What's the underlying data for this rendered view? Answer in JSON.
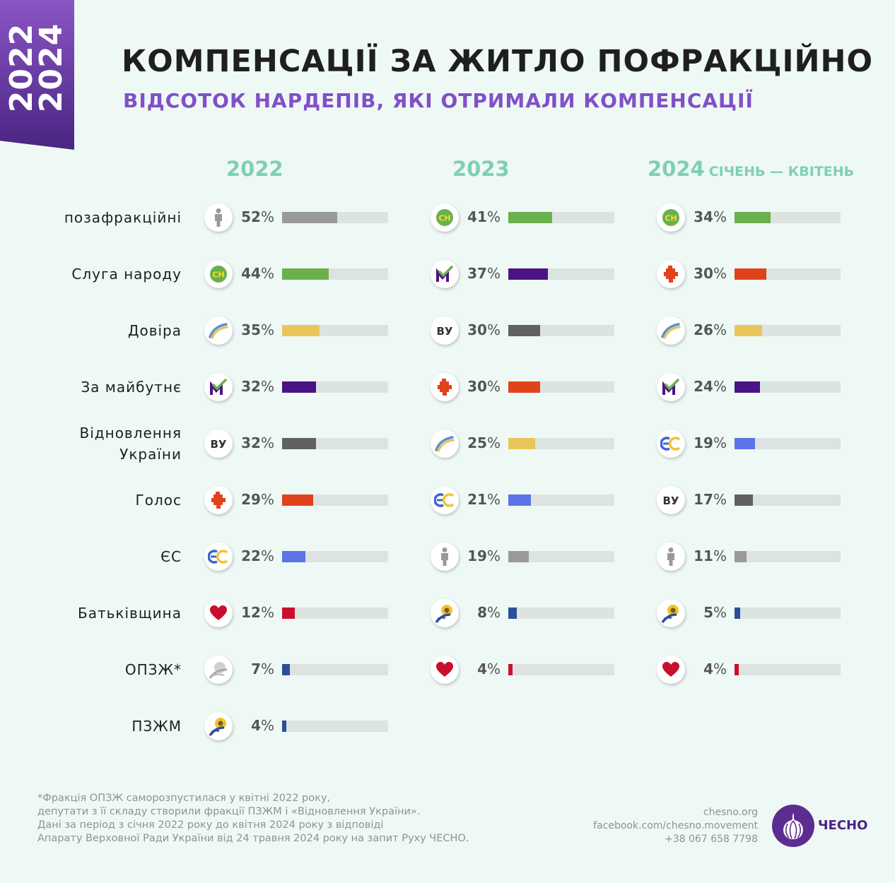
{
  "ribbon": {
    "line1": "2022",
    "line2": "2024"
  },
  "header": {
    "title": "КОМПЕНСАЦІЇ ЗА ЖИТЛО ПОФРАКЦІЙНО",
    "subtitle": "ВІДСОТОК НАРДЕПІВ, ЯКІ ОТРИМАЛИ КОМПЕНСАЦІЇ"
  },
  "colors": {
    "background": "#eef8f5",
    "accent_purple": "#8150c8",
    "column_header": "#7fd0b2",
    "track": "#dde3e1"
  },
  "factions": {
    "poza": {
      "label": "позафракційні",
      "icon": "person-icon",
      "color": "#9a9a9a"
    },
    "sn": {
      "label": "Слуга народу",
      "icon": "sluha-narodu-icon",
      "color": "#6ab04c"
    },
    "doveria": {
      "label": "Довіра",
      "icon": "dovira-icon",
      "color": "#e8c65a"
    },
    "zm": {
      "label": "За майбутнє",
      "icon": "za-maibutne-icon",
      "color": "#4b1486"
    },
    "vu": {
      "label": "Відновлення України",
      "icon": "vu-icon",
      "color": "#5f6261"
    },
    "holos": {
      "label": "Голос",
      "icon": "holos-icon",
      "color": "#e0421c"
    },
    "es": {
      "label": "ЄС",
      "icon": "es-icon",
      "color": "#5b74e8"
    },
    "batk": {
      "label": "Батьківщина",
      "icon": "heart-icon",
      "color": "#c8102e"
    },
    "opzzh": {
      "label": "ОПЗЖ*",
      "icon": "opzzh-icon",
      "color": "#2a4d9c"
    },
    "pzzhm": {
      "label": "ПЗЖМ",
      "icon": "sunflower-icon",
      "color": "#2a4d9c"
    }
  },
  "chart_data": {
    "type": "bar",
    "unit": "%",
    "xlim": [
      0,
      100
    ],
    "row_labels": [
      "позафракційні",
      "Слуга народу",
      "Довіра",
      "За майбутнє",
      "Відновлення України",
      "Голос",
      "ЄС",
      "Батьківщина",
      "ОПЗЖ*",
      "ПЗЖМ"
    ],
    "columns": [
      {
        "year": "2022",
        "period": "",
        "rows": [
          {
            "faction": "poza",
            "value": 52
          },
          {
            "faction": "sn",
            "value": 44
          },
          {
            "faction": "doveria",
            "value": 35
          },
          {
            "faction": "zm",
            "value": 32
          },
          {
            "faction": "vu",
            "value": 32
          },
          {
            "faction": "holos",
            "value": 29
          },
          {
            "faction": "es",
            "value": 22
          },
          {
            "faction": "batk",
            "value": 12
          },
          {
            "faction": "opzzh",
            "value": 7
          },
          {
            "faction": "pzzhm",
            "value": 4
          }
        ]
      },
      {
        "year": "2023",
        "period": "",
        "rows": [
          {
            "faction": "sn",
            "value": 41
          },
          {
            "faction": "zm",
            "value": 37
          },
          {
            "faction": "vu",
            "value": 30
          },
          {
            "faction": "holos",
            "value": 30
          },
          {
            "faction": "doveria",
            "value": 25
          },
          {
            "faction": "es",
            "value": 21
          },
          {
            "faction": "poza",
            "value": 19
          },
          {
            "faction": "pzzhm",
            "value": 8
          },
          {
            "faction": "batk",
            "value": 4
          }
        ]
      },
      {
        "year": "2024",
        "period": "СІЧЕНЬ — КВІТЕНЬ",
        "rows": [
          {
            "faction": "sn",
            "value": 34
          },
          {
            "faction": "holos",
            "value": 30
          },
          {
            "faction": "doveria",
            "value": 26
          },
          {
            "faction": "zm",
            "value": 24
          },
          {
            "faction": "es",
            "value": 19
          },
          {
            "faction": "vu",
            "value": 17
          },
          {
            "faction": "poza",
            "value": 11
          },
          {
            "faction": "pzzhm",
            "value": 5
          },
          {
            "faction": "batk",
            "value": 4
          }
        ]
      }
    ]
  },
  "footnote": [
    "*Фракція ОПЗЖ саморозпустилася у квітні 2022 року,",
    "депутати з її складу створили фракції ПЗЖМ і «Відновлення України».",
    "Дані за період з січня 2022 року до квітня 2024 року з відповіді",
    "Апарату Верховної Ради України від 24 травня 2024 року на запит Руху ЧЕСНО."
  ],
  "contacts": [
    "chesno.org",
    "facebook.com/chesno.movement",
    "+38 067 658 7798"
  ],
  "logo": {
    "text": "ЧЕСНО",
    "icon": "garlic-icon"
  }
}
